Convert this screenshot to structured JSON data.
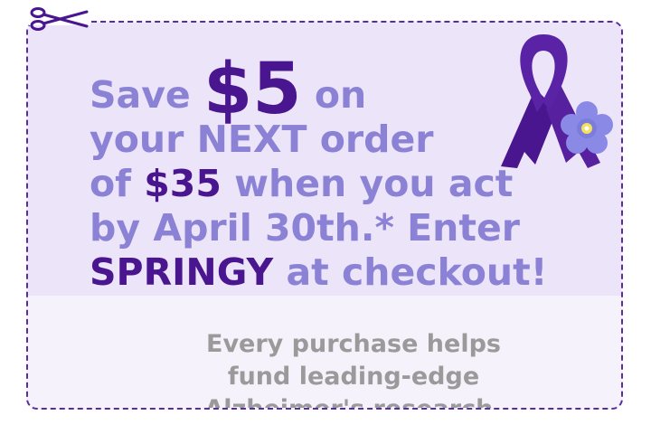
{
  "headline": {
    "line1_pre": "Save ",
    "line1_amount": "$5",
    "line1_post": " on",
    "line2": "your NEXT order",
    "line3_pre": "of ",
    "line3_amount": "$35",
    "line3_post": " when you act",
    "line4": "by April 30th.* Enter",
    "line5_code": "SPRINGY",
    "line5_post": " at checkout!"
  },
  "subtext": {
    "line1": "Every purchase helps",
    "line2": "fund leading-edge",
    "line3": "Alzheimer's research."
  },
  "colors": {
    "accent_dark": "#4a168f",
    "accent_light": "#8b82d6",
    "subtext": "#9a9a9a",
    "coupon_top_bg": "#ece4f8",
    "coupon_bottom_bg": "#f6f2fb",
    "border": "#5a2d9c",
    "flower": "#8a8ae6"
  },
  "icons": {
    "scissors": "scissors-icon",
    "ribbon": "awareness-ribbon-icon",
    "flower": "forget-me-not-flower-icon"
  }
}
